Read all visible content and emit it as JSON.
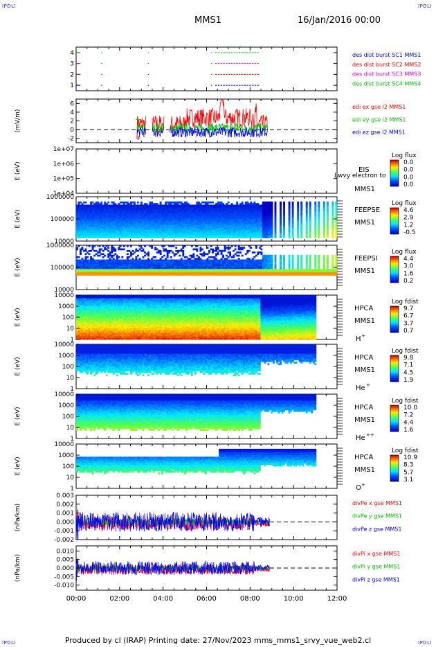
{
  "header": {
    "mission": "MMS1",
    "date": "16/Jan/2016 00:00",
    "corner_mark": "IPDLI"
  },
  "footer": {
    "text": "Produced by cl (IRAP)   Printing date: 27/Nov/2023   mms_mms1_srvy_vue_web2.cl"
  },
  "colors": {
    "mms1": "#0000ff",
    "mms2": "#ff0000",
    "mms3": "#e000e0",
    "mms4": "#00c000",
    "black": "#000000"
  },
  "chart_data": [
    {
      "id": "burst",
      "type": "scatter",
      "ylabel": "",
      "ylim": [
        0.5,
        4.5
      ],
      "yticks": [
        "1",
        "2",
        "3",
        "4"
      ],
      "legend": [
        {
          "text": "des dist burst SC1 MMS1",
          "color": "#0000ff"
        },
        {
          "text": "des dist burst SC2 MMS2",
          "color": "#ff0000"
        },
        {
          "text": "des dist burst SC3 MMS3",
          "color": "#e000e0"
        },
        {
          "text": "des dist burst SC4 MMS4",
          "color": "#00c000"
        }
      ],
      "intervals": [
        {
          "sc": 1,
          "ranges": [
            [
              0.0,
              0.2
            ],
            [
              1.15,
              1.2
            ],
            [
              3.3,
              3.35
            ],
            [
              6.2,
              6.25
            ],
            [
              6.4,
              8.4
            ]
          ]
        },
        {
          "sc": 2,
          "ranges": [
            [
              0.0,
              0.2
            ],
            [
              1.15,
              1.2
            ],
            [
              3.3,
              3.35
            ],
            [
              6.2,
              6.25
            ],
            [
              6.4,
              8.4
            ]
          ]
        },
        {
          "sc": 3,
          "ranges": [
            [
              0.0,
              0.2
            ],
            [
              1.15,
              1.2
            ],
            [
              3.3,
              3.35
            ],
            [
              6.2,
              6.25
            ],
            [
              6.4,
              8.4
            ]
          ]
        },
        {
          "sc": 4,
          "ranges": [
            [
              0.0,
              0.2
            ],
            [
              1.15,
              1.2
            ],
            [
              3.3,
              3.35
            ],
            [
              6.2,
              6.25
            ],
            [
              6.4,
              8.4
            ]
          ]
        }
      ]
    },
    {
      "id": "edi",
      "type": "line",
      "ylabel": "(mV/m)",
      "ylim": [
        -3,
        7
      ],
      "yticks": [
        "-2",
        "0",
        "2",
        "4",
        "6"
      ],
      "legend": [
        {
          "text": "edi ex gse l2 MMS1",
          "color": "#ff0000"
        },
        {
          "text": "edi ey gse l2 MMS1",
          "color": "#00c000"
        },
        {
          "text": "edi ez gse l2 MMS1",
          "color": "#0000ff"
        }
      ],
      "x_range": [
        2.8,
        8.8
      ]
    },
    {
      "id": "eis",
      "type": "heatmap",
      "ylabel": "E (eV)",
      "ylim": [
        10000.0,
        10000000.0
      ],
      "log": true,
      "yticks": [
        "1e+04",
        "1e+05",
        "1e+06",
        "1e+07"
      ],
      "side_labels": [
        "EIS",
        "MMS1"
      ],
      "overlay_label": "Lwvy electron to",
      "colorbar": {
        "title": "Log flux",
        "ticks": [
          "0.0",
          "0.0",
          "0.0",
          "0.0"
        ]
      }
    },
    {
      "id": "feepse",
      "type": "heatmap",
      "ylabel": "E (eV)",
      "ylim": [
        10000.0,
        1000000.0
      ],
      "log": true,
      "yticks": [
        "10000",
        "100000",
        "1000000"
      ],
      "side_labels": [
        "FEEPSE",
        "MMS1"
      ],
      "colorbar": {
        "title": "Log flux",
        "ticks": [
          "4.6",
          "2.9",
          "1.2",
          "-0.5"
        ]
      }
    },
    {
      "id": "feepsi",
      "type": "heatmap",
      "ylabel": "E (eV)",
      "ylim": [
        10000.0,
        1000000.0
      ],
      "log": true,
      "yticks": [
        "10000",
        "100000",
        "1000000"
      ],
      "side_labels": [
        "FEEPSI",
        "MMS1"
      ],
      "colorbar": {
        "title": "Log flux",
        "ticks": [
          "4.4",
          "3.0",
          "1.6",
          "0.2"
        ]
      }
    },
    {
      "id": "hpca_h",
      "type": "heatmap",
      "ylabel": "E (eV)",
      "ylim": [
        1,
        10000.0
      ],
      "log": true,
      "yticks": [
        "1",
        "10",
        "100",
        "1000",
        "10000"
      ],
      "side_labels": [
        "HPCA",
        "MMS1"
      ],
      "species": "H",
      "species_sup": "+",
      "colorbar": {
        "title": "Log fdist",
        "ticks": [
          "9.7",
          "6.7",
          "3.7",
          "0.7"
        ]
      }
    },
    {
      "id": "hpca_he",
      "type": "heatmap",
      "ylabel": "E (eV)",
      "ylim": [
        1,
        10000.0
      ],
      "log": true,
      "yticks": [
        "1",
        "10",
        "100",
        "1000",
        "10000"
      ],
      "side_labels": [
        "HPCA",
        "MMS1"
      ],
      "species": "He",
      "species_sup": "+",
      "colorbar": {
        "title": "Log fdist",
        "ticks": [
          "9.8",
          "7.1",
          "4.5",
          "1.9"
        ]
      }
    },
    {
      "id": "hpca_he2",
      "type": "heatmap",
      "ylabel": "E (eV)",
      "ylim": [
        1,
        10000.0
      ],
      "log": true,
      "yticks": [
        "1",
        "10",
        "100",
        "1000",
        "10000"
      ],
      "side_labels": [
        "HPCA",
        "MMS1"
      ],
      "species": "He",
      "species_sup": "++",
      "colorbar": {
        "title": "Log fdist",
        "ticks": [
          "10.0",
          "7.2",
          "4.4",
          "1.6"
        ]
      }
    },
    {
      "id": "hpca_o",
      "type": "heatmap",
      "ylabel": "E (eV)",
      "ylim": [
        1,
        10000.0
      ],
      "log": true,
      "yticks": [
        "1",
        "10",
        "100",
        "1000",
        "10000"
      ],
      "side_labels": [
        "HPCA",
        "MMS1"
      ],
      "species": "O",
      "species_sup": "+",
      "colorbar": {
        "title": "Log fdist",
        "ticks": [
          "10.9",
          "8.3",
          "5.7",
          "3.1"
        ]
      }
    },
    {
      "id": "divpe",
      "type": "line",
      "ylabel": "(nPa/km)",
      "ylim": [
        -0.002,
        0.003
      ],
      "yticks": [
        "-0.002",
        "-0.001",
        "0.000",
        "0.001",
        "0.002",
        "0.003"
      ],
      "legend": [
        {
          "text": "divPe x gse MMS1",
          "color": "#ff0000"
        },
        {
          "text": "divPe y gse MMS1",
          "color": "#00c000"
        },
        {
          "text": "divPe z gse MMS1",
          "color": "#0000ff"
        }
      ],
      "x_range": [
        0.0,
        8.9
      ]
    },
    {
      "id": "divpi",
      "type": "line",
      "ylabel": "(nPa/km)",
      "ylim": [
        -0.013,
        0.013
      ],
      "yticks": [
        "-0.010",
        "-0.005",
        "0.000",
        "0.005",
        "0.010"
      ],
      "legend": [
        {
          "text": "divPi x gse MMS1",
          "color": "#ff0000"
        },
        {
          "text": "divPi y gse MMS1",
          "color": "#00c000"
        },
        {
          "text": "divPi z gse MMS1",
          "color": "#0000ff"
        }
      ],
      "x_range": [
        0.0,
        8.9
      ]
    }
  ],
  "x_axis": {
    "range_hours": [
      0,
      12
    ],
    "ticks": [
      {
        "value": 0,
        "label": "00:00"
      },
      {
        "value": 2,
        "label": "02:00"
      },
      {
        "value": 4,
        "label": "04:00"
      },
      {
        "value": 6,
        "label": "06:00"
      },
      {
        "value": 8,
        "label": "08:00"
      },
      {
        "value": 10,
        "label": "10:00"
      },
      {
        "value": 12,
        "label": "12:00"
      }
    ]
  }
}
